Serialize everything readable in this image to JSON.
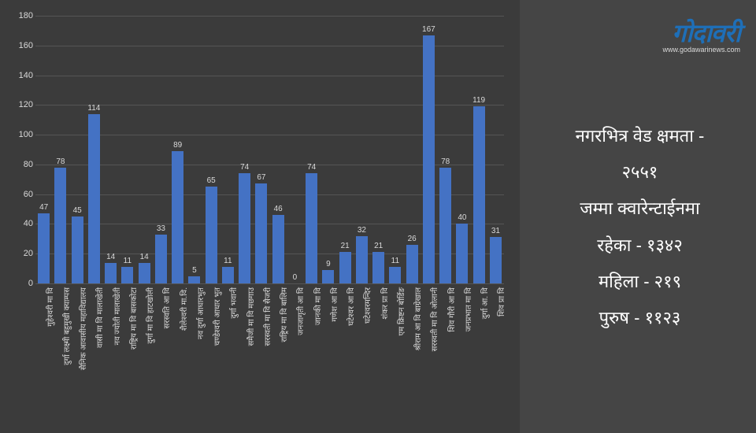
{
  "colors": {
    "panel_bg": "#3b3b3b",
    "info_bg": "#454545",
    "bar_fill": "#4472c4",
    "grid": "#555555",
    "text_light": "#d9d9d9",
    "text_info": "#ffffff",
    "logo_blue": "#1e6fb8"
  },
  "logo": {
    "main": "गोदावरी",
    "sub": "www.godawarinews.com"
  },
  "stats": {
    "line1": "नगरभित्र वेड क्षमता -",
    "line2": "२५५१",
    "line3": "जम्मा क्वारेन्टाईनमा",
    "line4": "रहेका - १३४२",
    "line5": "महिला - २१९",
    "line6": "पुरुष - ११२३"
  },
  "chart": {
    "type": "bar",
    "ylim": [
      0,
      180
    ],
    "ytick_step": 20,
    "categories": [
      "गुहेश्वरी मा वि",
      "दुर्गा लक्ष्मी बहुमुखी क्याम्पस",
      "सैनिक आवासीय महाविद्यालय",
      "वासी मा वि मालाखेती",
      "नव ज्योती मालाखेती",
      "राष्ट्रिय मा वि बासकोटा",
      "दुर्गा मा वि हाटखोली",
      "सरस्वति आ वि",
      "शैलेश्वरी मा.वि.",
      "नव दुर्गा आधारभुत",
      "चण्डेश्वरी आधार भुत",
      "दुर्गा भवानी",
      "समैजी मा वि मछगाउ",
      "सरस्वती मा वि सैजरी",
      "राष्ट्रिय मा वि बालिम",
      "जनजागृती आ वि",
      "जानकी मा वि",
      "गणेश आ वि",
      "घटेश्वर आ वि",
      "घटेश्वरमन्दिर",
      "शंकर प्रा वि",
      "एम क्रिष्टन बोर्डिङ",
      "श्रीराम आ वि बाग्रेखाल",
      "सरस्वती मा वि ओलानी",
      "शिव गौरी आ वि",
      "जनप्रभात मा वि",
      "दुर्गा आ. वि",
      "शिव प्रा वि"
    ],
    "values": [
      47,
      78,
      45,
      114,
      14,
      11,
      14,
      33,
      89,
      5,
      65,
      11,
      74,
      67,
      46,
      0,
      74,
      9,
      21,
      32,
      21,
      11,
      26,
      167,
      78,
      40,
      119,
      31
    ]
  }
}
